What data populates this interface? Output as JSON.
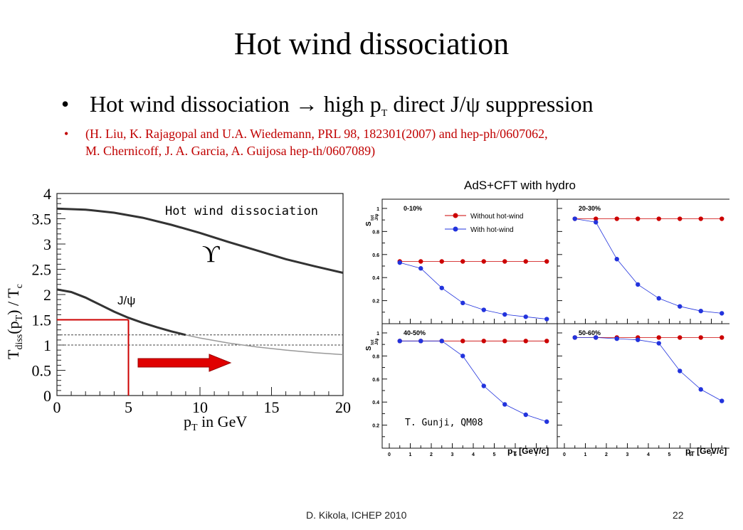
{
  "slide": {
    "title": "Hot wind dissociation",
    "bullet1_main": "Hot wind dissociation →  high p",
    "bullet1_sub": "T",
    "bullet1_rest": " direct J/ψ suppression",
    "bullet2_line1": "(H. Liu, K. Rajagopal and U.A. Wiedemann, PRL 98, 182301(2007) and hep-ph/0607062,",
    "bullet2_line2": "M. Chernicoff, J. A. Garcia, A. Guijosa hep-th/0607089)",
    "right_heading": "AdS+CFT with hydro",
    "footer": "D. Kikola, ICHEP 2010",
    "page_number": "22"
  },
  "colors": {
    "red": "#cc0000",
    "blue": "#2233dd",
    "dark_curve": "#333333"
  },
  "chart_data": [
    {
      "type": "line",
      "title": "Hot wind dissociation",
      "xlabel": "p_T in GeV",
      "ylabel": "T_diss(p_T) / T_c",
      "xlim": [
        0,
        20
      ],
      "ylim": [
        0,
        4
      ],
      "x_ticks": [
        "0",
        "5",
        "10",
        "15",
        "20"
      ],
      "y_ticks": [
        "0",
        "0.5",
        "1",
        "1.5",
        "2",
        "2.5",
        "3",
        "3.5",
        "4"
      ],
      "annotations": [
        "ϒ",
        "J/ψ"
      ],
      "series": [
        {
          "name": "ϒ",
          "x": [
            0,
            2,
            4,
            6,
            8,
            10,
            12,
            14,
            16,
            18,
            20
          ],
          "values": [
            3.7,
            3.68,
            3.62,
            3.52,
            3.38,
            3.22,
            3.04,
            2.87,
            2.7,
            2.56,
            2.43
          ]
        },
        {
          "name": "J/ψ",
          "x": [
            0,
            1,
            2,
            3,
            4,
            5,
            6,
            7,
            8,
            9,
            10,
            12,
            14,
            16,
            18,
            20
          ],
          "values": [
            2.1,
            2.05,
            1.94,
            1.8,
            1.66,
            1.54,
            1.44,
            1.35,
            1.27,
            1.2,
            1.14,
            1.04,
            0.96,
            0.9,
            0.85,
            0.81
          ]
        }
      ],
      "reference_lines": [
        1.2,
        1.0
      ],
      "highlight_point": {
        "x": 5,
        "y": 1.5
      }
    },
    {
      "type": "scatter",
      "annotation": "T. Gunji, QM08",
      "xlabel": "p_T [GeV/c]",
      "ylabel": "S^tot_J/ψ",
      "legend": [
        "Without hot-wind",
        "With hot-wind"
      ],
      "x_tick_labels": [
        "0",
        "1",
        "2",
        "3",
        "4",
        "5",
        "6",
        "7"
      ],
      "y_tick_labels": [
        "0.2",
        "0.4",
        "0.6",
        "0.8",
        "1"
      ],
      "x": [
        0.5,
        1.5,
        2.5,
        3.5,
        4.5,
        5.5,
        6.5,
        7.5
      ],
      "panels": [
        {
          "label": "0-10%",
          "without": [
            0.54,
            0.54,
            0.54,
            0.54,
            0.54,
            0.54,
            0.54,
            0.54
          ],
          "with": [
            0.53,
            0.48,
            0.31,
            0.18,
            0.12,
            0.08,
            0.06,
            0.04
          ]
        },
        {
          "label": "20-30%",
          "without": [
            0.91,
            0.91,
            0.91,
            0.91,
            0.91,
            0.91,
            0.91,
            0.91
          ],
          "with": [
            0.91,
            0.88,
            0.56,
            0.34,
            0.22,
            0.15,
            0.11,
            0.09
          ]
        },
        {
          "label": "40-50%",
          "without": [
            0.93,
            0.93,
            0.93,
            0.93,
            0.93,
            0.93,
            0.93,
            0.93
          ],
          "with": [
            0.93,
            0.93,
            0.93,
            0.8,
            0.54,
            0.38,
            0.29,
            0.23
          ]
        },
        {
          "label": "50-60%",
          "without": [
            0.96,
            0.96,
            0.96,
            0.96,
            0.96,
            0.96,
            0.96,
            0.96
          ],
          "with": [
            0.96,
            0.96,
            0.95,
            0.94,
            0.91,
            0.67,
            0.51,
            0.41
          ]
        }
      ]
    }
  ]
}
